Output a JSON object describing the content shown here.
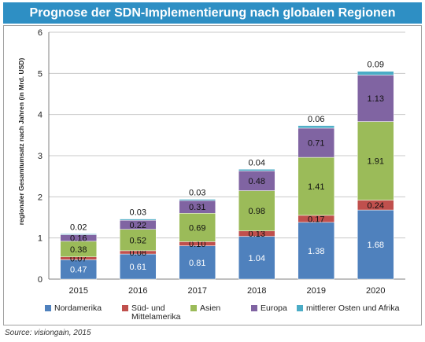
{
  "title": "Prognose der SDN-Implementierung nach globalen Regionen",
  "source": "Source: visiongain, 2015",
  "colors": {
    "title_bg": "#2e8fc4",
    "series": [
      "#4f81bd",
      "#c0504d",
      "#9bbb59",
      "#8064a2",
      "#4bacc6"
    ]
  },
  "chart_data": {
    "type": "bar",
    "stacked": true,
    "categories": [
      "2015",
      "2016",
      "2017",
      "2018",
      "2019",
      "2020"
    ],
    "series": [
      {
        "name": "Nordamerika",
        "values": [
          0.47,
          0.61,
          0.81,
          1.04,
          1.38,
          1.68
        ]
      },
      {
        "name": "Süd- und Mittelamerika",
        "values": [
          0.07,
          0.08,
          0.1,
          0.13,
          0.17,
          0.24
        ]
      },
      {
        "name": "Asien",
        "values": [
          0.38,
          0.52,
          0.69,
          0.98,
          1.41,
          1.91
        ]
      },
      {
        "name": "Europa",
        "values": [
          0.16,
          0.22,
          0.31,
          0.48,
          0.71,
          1.13
        ]
      },
      {
        "name": "mittlerer Osten und Afrika",
        "values": [
          0.02,
          0.03,
          0.03,
          0.04,
          0.06,
          0.09
        ]
      }
    ],
    "legend_labels": [
      [
        "Nordamerika"
      ],
      [
        "Süd- und",
        "Mittelamerika"
      ],
      [
        "Asien"
      ],
      [
        "Europa"
      ],
      [
        "mittlerer Osten und Afrika"
      ]
    ],
    "value_labels": [
      [
        "0.47",
        "0.61",
        "0.81",
        "1.04",
        "1.38",
        "1.68"
      ],
      [
        "0.07",
        "0.08",
        "0.10",
        "0.13",
        "0.17",
        "0.24"
      ],
      [
        "0.38",
        "0.52",
        "0.69",
        "0.98",
        "1.41",
        "1.91"
      ],
      [
        "0.16",
        "0.22",
        "0.31",
        "0.48",
        "0.71",
        "1.13"
      ],
      [
        "0.02",
        "0.03",
        "0.03",
        "0.04",
        "0.06",
        "0.09"
      ]
    ],
    "ylabel": "regionaler Gesamtumsatz nach Jahren (in Mrd. USD)",
    "xlabel": "",
    "ylim": [
      0,
      6
    ],
    "yticks": [
      "0",
      "1",
      "2",
      "3",
      "4",
      "5",
      "6"
    ],
    "grid": true,
    "legend_position": "bottom"
  }
}
